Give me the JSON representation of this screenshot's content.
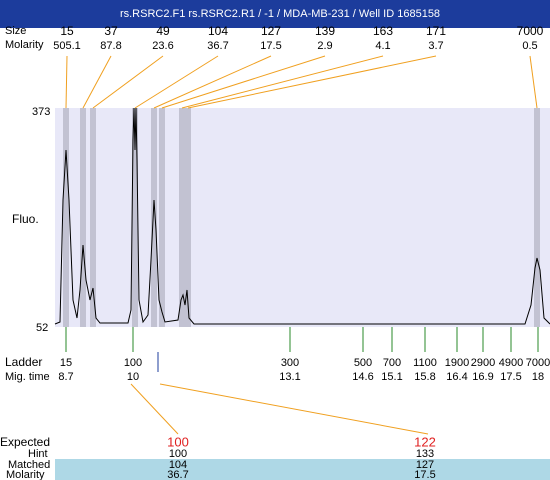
{
  "header": {
    "title": "rs.RSRC2.F1  rs.RSRC2.R1 / -1 / MDA-MB-231 / Well ID 1685158"
  },
  "peaks": {
    "size_label": "Size",
    "molarity_label": "Molarity",
    "items": [
      {
        "size": 15,
        "molarity": 505.1
      },
      {
        "size": 37,
        "molarity": 87.8
      },
      {
        "size": 49,
        "molarity": 23.6
      },
      {
        "size": 104,
        "molarity": 36.7
      },
      {
        "size": 127,
        "molarity": 17.5
      },
      {
        "size": 139,
        "molarity": 2.9
      },
      {
        "size": 163,
        "molarity": 4.1
      },
      {
        "size": 171,
        "molarity": 3.7
      },
      {
        "size": 7000,
        "molarity": 0.5
      }
    ]
  },
  "axis": {
    "label": "Fluo.",
    "top": 373,
    "bottom": 52
  },
  "ladder": {
    "label": "Ladder",
    "time_label": "Mig. time",
    "items": [
      {
        "size": 15,
        "time": 8.7
      },
      {
        "size": 100,
        "time": 10
      },
      {
        "size": 300,
        "time": 13.1
      },
      {
        "size": 500,
        "time": 14.6
      },
      {
        "size": 700,
        "time": 15.1
      },
      {
        "size": 1100,
        "time": 15.8
      },
      {
        "size": 1900,
        "time": 16.4
      },
      {
        "size": 2900,
        "time": 16.9
      },
      {
        "size": 4900,
        "time": 17.5
      },
      {
        "size": 7000,
        "time": 18
      }
    ]
  },
  "table": {
    "row_labels": [
      "Expected",
      "Hint",
      "Matched",
      "Molarity"
    ],
    "columns": [
      {
        "expected": 100,
        "hint": 100,
        "matched": 104,
        "molarity": 36.7
      },
      {
        "expected": 122,
        "hint": 133,
        "matched": 127,
        "molarity": 17.5
      }
    ]
  }
}
